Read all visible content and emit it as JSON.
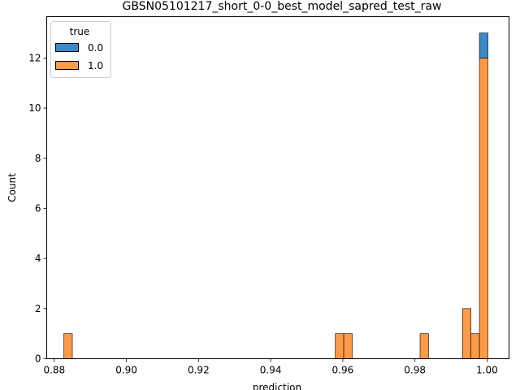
{
  "chart_data": {
    "type": "bar",
    "title": "GBSN05101217_short_0-0_best_model_sapred_test_raw",
    "xlabel": "prediction",
    "ylabel": "Count",
    "xlim": [
      0.8779,
      1.0061
    ],
    "ylim": [
      0,
      13.65
    ],
    "bin_edges_start": 0.88265,
    "bin_width": 0.002352,
    "x_ticks": [
      0.88,
      0.9,
      0.92,
      0.94,
      0.96,
      0.98,
      1.0
    ],
    "x_tick_labels": [
      "0.88",
      "0.90",
      "0.92",
      "0.94",
      "0.96",
      "0.98",
      "1.00"
    ],
    "y_ticks": [
      0,
      2,
      4,
      6,
      8,
      10,
      12
    ],
    "y_tick_labels": [
      "0",
      "2",
      "4",
      "6",
      "8",
      "10",
      "12"
    ],
    "grid": false,
    "legend": {
      "title": "true",
      "placement": "top-left"
    },
    "series": [
      {
        "name": "0.0",
        "color": "#3a89c9",
        "bins": [
          {
            "bin": 49,
            "count": 1
          }
        ]
      },
      {
        "name": "1.0",
        "color": "#ff9a46",
        "bins": [
          {
            "bin": 0,
            "count": 1
          },
          {
            "bin": 32,
            "count": 1
          },
          {
            "bin": 33,
            "count": 1
          },
          {
            "bin": 42,
            "count": 1
          },
          {
            "bin": 47,
            "count": 2
          },
          {
            "bin": 48,
            "count": 1
          },
          {
            "bin": 49,
            "count": 12
          }
        ]
      }
    ]
  }
}
